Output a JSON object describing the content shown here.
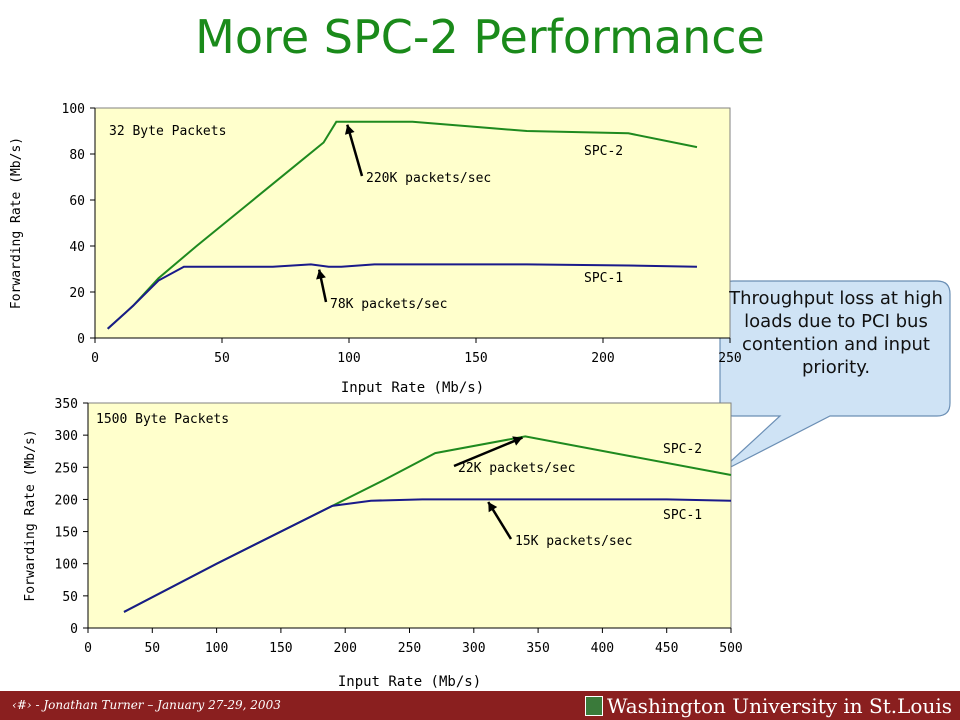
{
  "title": "More SPC-2 Performance",
  "footer": {
    "text": "‹#› - Jonathan Turner – January 27-29, 2003",
    "logo": "Washington University in St.Louis",
    "bg_color": "#8a1f1f"
  },
  "callout": {
    "text": "Throughput loss at high loads due to PCI bus contention and input priority.",
    "color": "#cfe3f5"
  },
  "chart_data": [
    {
      "type": "line",
      "title": "32 Byte Packets",
      "xlabel": "Input Rate (Mb/s)",
      "ylabel": "Forwarding Rate (Mb/s)",
      "xlim": [
        0,
        250
      ],
      "ylim": [
        0,
        100
      ],
      "xticks": [
        "0",
        "50",
        "100",
        "150",
        "200",
        "250"
      ],
      "yticks": [
        "0",
        "20",
        "40",
        "60",
        "80",
        "100"
      ],
      "grid": false,
      "plot_bg": "#ffffcc",
      "series": [
        {
          "name": "SPC-2",
          "color": "#1f8a1f",
          "x": [
            5,
            15,
            25,
            40,
            60,
            80,
            90,
            95,
            100,
            125,
            170,
            210,
            237
          ],
          "y": [
            4,
            14,
            26,
            40,
            58,
            76,
            85,
            94,
            94,
            94,
            90,
            89,
            83
          ]
        },
        {
          "name": "SPC-1",
          "color": "#1a1a8a",
          "x": [
            5,
            15,
            25,
            35,
            50,
            70,
            85,
            92,
            97,
            110,
            130,
            170,
            210,
            237
          ],
          "y": [
            4,
            14,
            25,
            31,
            31,
            31,
            32,
            31,
            31,
            32,
            32,
            32,
            31.5,
            31
          ]
        }
      ],
      "annotations": [
        {
          "text": "220K packets/sec",
          "x": 99,
          "y": 94
        },
        {
          "text": "78K packets/sec",
          "x": 88,
          "y": 31
        }
      ]
    },
    {
      "type": "line",
      "title": "1500 Byte Packets",
      "xlabel": "Input Rate (Mb/s)",
      "ylabel": "Forwarding Rate (Mb/s)",
      "xlim": [
        0,
        500
      ],
      "ylim": [
        0,
        350
      ],
      "xticks": [
        "0",
        "50",
        "100",
        "150",
        "200",
        "250",
        "300",
        "350",
        "400",
        "450",
        "500"
      ],
      "yticks": [
        "0",
        "50",
        "100",
        "150",
        "200",
        "250",
        "300",
        "350"
      ],
      "grid": false,
      "plot_bg": "#ffffcc",
      "series": [
        {
          "name": "SPC-2",
          "color": "#1f8a1f",
          "x": [
            28,
            100,
            190,
            230,
            270,
            340,
            420,
            500
          ],
          "y": [
            25,
            100,
            190,
            230,
            272,
            298,
            268,
            238
          ]
        },
        {
          "name": "SPC-1",
          "color": "#1a1a8a",
          "x": [
            28,
            100,
            190,
            220,
            260,
            350,
            450,
            500
          ],
          "y": [
            25,
            100,
            190,
            198,
            200,
            200,
            200,
            198
          ]
        }
      ],
      "annotations": [
        {
          "text": "22K packets/sec",
          "x": 340,
          "y": 298
        },
        {
          "text": "15K packets/sec",
          "x": 310,
          "y": 200
        }
      ]
    }
  ]
}
